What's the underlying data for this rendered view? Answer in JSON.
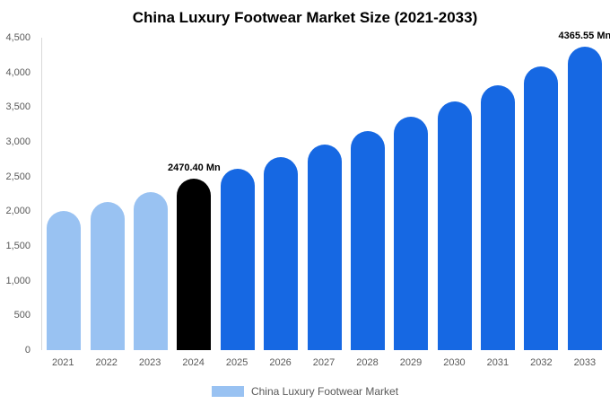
{
  "title": "China Luxury Footwear Market Size (2021-2033)",
  "legend": {
    "label": "China Luxury Footwear Market",
    "swatch_color": "#99c2f2"
  },
  "colors": {
    "historical_bar": "#99c2f2",
    "base_year_bar": "#000000",
    "forecast_bar": "#1668e3",
    "axis_text": "#595959",
    "annotation_text": "#000000"
  },
  "chart_data": {
    "type": "bar",
    "title": "China Luxury Footwear Market Size (2021-2033)",
    "xlabel": "",
    "ylabel": "",
    "unit": "Mn",
    "categories": [
      "2021",
      "2022",
      "2023",
      "2024",
      "2025",
      "2026",
      "2027",
      "2028",
      "2029",
      "2030",
      "2031",
      "2032",
      "2033"
    ],
    "values": [
      2000,
      2140,
      2280,
      2470.4,
      2610,
      2780,
      2960,
      3150,
      3360,
      3580,
      3810,
      4090,
      4365.55
    ],
    "bar_colors": [
      "#99c2f2",
      "#99c2f2",
      "#99c2f2",
      "#000000",
      "#1668e3",
      "#1668e3",
      "#1668e3",
      "#1668e3",
      "#1668e3",
      "#1668e3",
      "#1668e3",
      "#1668e3",
      "#1668e3"
    ],
    "ylim": [
      0,
      4500
    ],
    "grid": false,
    "legend_position": "bottom",
    "yticks": [
      {
        "value": 0,
        "label": "0"
      },
      {
        "value": 500,
        "label": "500"
      },
      {
        "value": 1000,
        "label": "1,000"
      },
      {
        "value": 1500,
        "label": "1,500"
      },
      {
        "value": 2000,
        "label": "2,000"
      },
      {
        "value": 2500,
        "label": "2,500"
      },
      {
        "value": 3000,
        "label": "3,000"
      },
      {
        "value": 3500,
        "label": "3,500"
      },
      {
        "value": 4000,
        "label": "4,000"
      },
      {
        "value": 4500,
        "label": "4,500"
      }
    ],
    "annotations": [
      {
        "index": 3,
        "text": "2470.40 Mn"
      },
      {
        "index": 12,
        "text": "4365.55 Mn"
      }
    ]
  }
}
